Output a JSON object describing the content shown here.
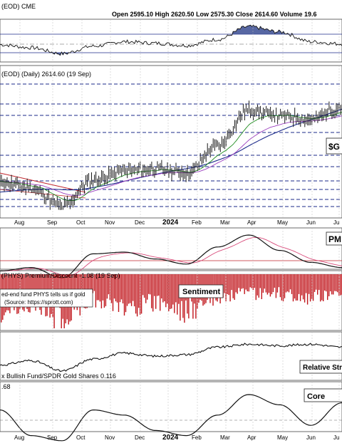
{
  "header": {
    "symbol_line": "(EOD) CME",
    "ohlc": "Open 2595.10  High 2620.50  Low 2575.30  Close 2614.60  Volume 19.6"
  },
  "price_panel": {
    "label": "(EOD) (Daily) 2614.60 (19 Sep)",
    "annotation": "$G"
  },
  "pmo_panel": {
    "annotation": "PM"
  },
  "sentiment_panel": {
    "label": "(PHYS) Premium/Discount -1.08 (19 Sep)",
    "note_line1": "ed-end fund PHYS tells us if gold",
    "note_line2": "(Source: https://sprott.com)",
    "annotation": "Sentiment"
  },
  "relative_panel": {
    "label": "x Bullish Fund/SPDR Gold Shares 0.116",
    "annotation": "Relative Str"
  },
  "core_panel": {
    "value_label": ".68",
    "annotation": "Core"
  },
  "x_axis": {
    "months": [
      "Aug",
      "Sep",
      "Oct",
      "Nov",
      "Dec",
      "2024",
      "Feb",
      "Mar",
      "Apr",
      "May",
      "Jun",
      "Ju"
    ]
  },
  "colors": {
    "price_up": "#1a1a1a",
    "ema_short": "#1e8c1e",
    "ema_long": "#9b3fbf",
    "sma_200": "#1b2a8a",
    "trend_red": "#c0242b",
    "pmo_signal": "#d84a7a",
    "sentiment_bar": "#c0151b",
    "grid_blue": "#1b2a8a"
  },
  "chart_data": [
    {
      "type": "line",
      "panel": "top indicator",
      "x": [
        "Aug",
        "Sep",
        "Oct",
        "Nov",
        "Dec",
        "2024",
        "Feb",
        "Mar",
        "Apr",
        "May",
        "Jun",
        "Jul"
      ],
      "series": [
        {
          "values": [
            48,
            44,
            36,
            46,
            52,
            50,
            47,
            55,
            72,
            65,
            52,
            49
          ]
        }
      ]
    },
    {
      "type": "line",
      "panel": "price",
      "x": [
        "Aug",
        "Sep",
        "Oct",
        "Nov",
        "Dec",
        "2024",
        "Feb",
        "Mar",
        "Apr",
        "May",
        "Jun",
        "Jul"
      ],
      "series": [
        {
          "values": [
            1975,
            1945,
            1840,
            1990,
            2040,
            2050,
            2030,
            2180,
            2380,
            2350,
            2330,
            2400
          ]
        }
      ],
      "last_value": 2614.6
    },
    {
      "type": "line",
      "panel": "PMO",
      "x": [
        "Aug",
        "Sep",
        "Oct",
        "Nov",
        "Dec",
        "2024",
        "Feb",
        "Mar",
        "Apr",
        "May",
        "Jun",
        "Jul"
      ],
      "series": [
        {
          "values": [
            -1.2,
            -0.8,
            -2.0,
            0.8,
            1.0,
            0.2,
            -0.4,
            1.6,
            3.0,
            1.2,
            -0.2,
            -0.8
          ]
        }
      ]
    },
    {
      "type": "bar",
      "panel": "sentiment",
      "x": [
        "Aug",
        "Sep",
        "Oct",
        "Nov",
        "Dec",
        "2024",
        "Feb",
        "Mar",
        "Apr",
        "May",
        "Jun",
        "Jul"
      ],
      "series": [
        {
          "values": [
            -4.5,
            -3.5,
            -5.5,
            -3.0,
            -4.0,
            -3.5,
            -4.5,
            -3.0,
            -2.5,
            -2.5,
            -3.0,
            -2.0
          ]
        }
      ],
      "last_value": -1.08
    },
    {
      "type": "line",
      "panel": "relative strength",
      "x": [
        "Aug",
        "Sep",
        "Oct",
        "Nov",
        "Dec",
        "2024",
        "Feb",
        "Mar",
        "Apr",
        "May",
        "Jun",
        "Jul"
      ],
      "series": [
        {
          "values": [
            0.104,
            0.107,
            0.1,
            0.108,
            0.112,
            0.11,
            0.111,
            0.116,
            0.118,
            0.117,
            0.118,
            0.116
          ]
        }
      ],
      "last_value": 0.116
    },
    {
      "type": "line",
      "panel": "core",
      "x": [
        "Aug",
        "Sep",
        "Oct",
        "Nov",
        "Dec",
        "2024",
        "Feb",
        "Mar",
        "Apr",
        "May",
        "Jun",
        "Jul"
      ],
      "series": [
        {
          "values": [
            0.4,
            -0.6,
            -0.8,
            0.4,
            0.2,
            -0.4,
            -0.6,
            0.2,
            1.0,
            0.6,
            -0.2,
            0.68
          ]
        }
      ]
    }
  ]
}
